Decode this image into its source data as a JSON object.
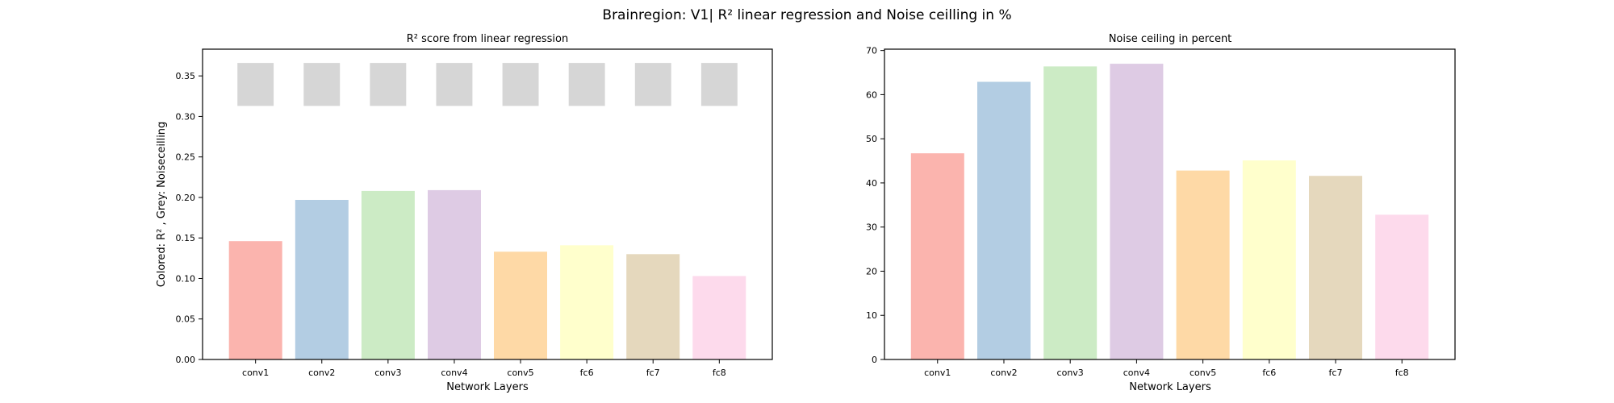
{
  "figure": {
    "suptitle": "Brainregion: V1| R² linear regression and Noise ceilling in %"
  },
  "colors": [
    "#fbb4ae",
    "#b3cde3",
    "#ccebc5",
    "#decbe4",
    "#fed9a6",
    "#ffffcc",
    "#e5d8bd",
    "#fddaec"
  ],
  "noise_color": "#d6d6d6",
  "chart_data": [
    {
      "type": "bar",
      "title": "R² score from linear regression",
      "xlabel": "Network Layers",
      "ylabel": "Colored: R² , Grey: Noiseceilling",
      "categories": [
        "conv1",
        "conv2",
        "conv3",
        "conv4",
        "conv5",
        "fc6",
        "fc7",
        "fc8"
      ],
      "series": [
        {
          "values": [
            0.146,
            0.197,
            0.208,
            0.209,
            0.133,
            0.141,
            0.13,
            0.103
          ]
        },
        {
          "type": "floating-bar",
          "bottom": 0.313,
          "top": 0.366,
          "values": [
            0.366,
            0.366,
            0.366,
            0.366,
            0.366,
            0.366,
            0.366,
            0.366
          ]
        }
      ],
      "ylim": [
        0,
        0.383
      ],
      "yticks": [
        0.0,
        0.05,
        0.1,
        0.15,
        0.2,
        0.25,
        0.3,
        0.35
      ],
      "ytick_labels": [
        "0.00",
        "0.05",
        "0.10",
        "0.15",
        "0.20",
        "0.25",
        "0.30",
        "0.35"
      ],
      "grid": false
    },
    {
      "type": "bar",
      "title": "Noise ceiling in percent",
      "xlabel": "Network Layers",
      "ylabel": "",
      "categories": [
        "conv1",
        "conv2",
        "conv3",
        "conv4",
        "conv5",
        "fc6",
        "fc7",
        "fc8"
      ],
      "values": [
        46.7,
        62.9,
        66.4,
        67.0,
        42.8,
        45.1,
        41.6,
        32.8
      ],
      "ylim": [
        0,
        70.3
      ],
      "yticks": [
        0,
        10,
        20,
        30,
        40,
        50,
        60,
        70
      ],
      "ytick_labels": [
        "0",
        "10",
        "20",
        "30",
        "40",
        "50",
        "60",
        "70"
      ],
      "grid": false
    }
  ]
}
